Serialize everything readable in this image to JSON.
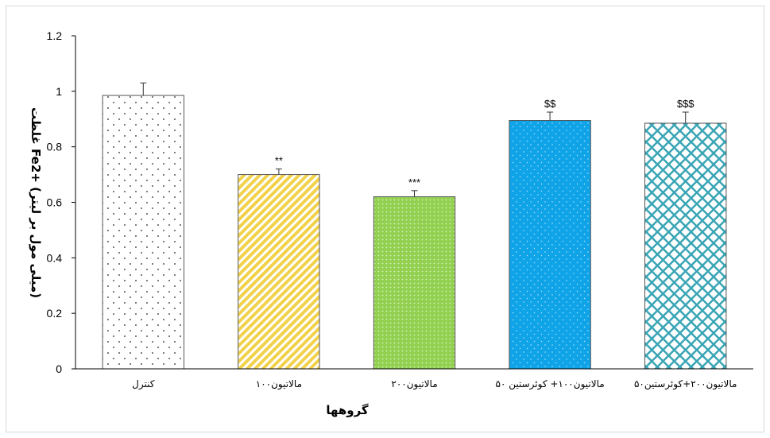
{
  "chart_data": {
    "type": "bar",
    "title": "",
    "xlabel": "گروهها",
    "ylabel": "غلظت Fe2+ (میلی مول بر لیتر)",
    "ylim": [
      0,
      1.2
    ],
    "yticks": [
      "0",
      "0.2",
      "0.4",
      "0.6",
      "0.8",
      "1",
      "1.2"
    ],
    "grid": false,
    "categories": [
      "کنترل",
      "مالاتیون۱۰۰",
      "مالاتیون۲۰۰",
      "مالاتیون۱۰۰+ کوئرستین ۵۰",
      "مالاتیون۲۰۰+کوئرستین۵۰"
    ],
    "values": [
      0.985,
      0.7,
      0.62,
      0.895,
      0.885
    ],
    "errors": [
      0.045,
      0.02,
      0.022,
      0.03,
      0.04
    ],
    "annotations": [
      "",
      "**",
      "***",
      "$$",
      "$$$"
    ],
    "colors": [
      "#ffffff",
      "#f2d24b",
      "#92d050",
      "#0fa3e8",
      "#ffffff"
    ],
    "patterns": [
      "dots-sparse",
      "diagonal-stripes",
      "dots-dense",
      "dots-fine",
      "crosshatch"
    ]
  }
}
